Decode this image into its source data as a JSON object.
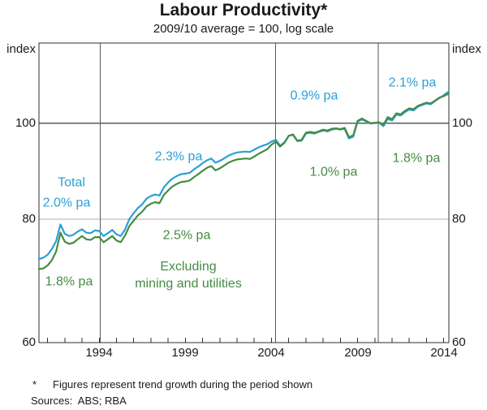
{
  "header": {
    "title": "Labour Productivity*",
    "subtitle": "2009/10 average = 100, log scale"
  },
  "axes": {
    "unit_label": "index",
    "y_ticks": [
      60,
      80,
      100
    ],
    "x_ticks": [
      1994,
      1999,
      2004,
      2009,
      2014
    ]
  },
  "footnotes": {
    "marker": "*",
    "note": "Figures represent trend growth during the period shown",
    "sources": "Sources:  ABS; RBA"
  },
  "colors": {
    "total": "#29A0D8",
    "excluding": "#448C42",
    "grid_light": "#ADADAD",
    "grid_dark": "#5A5A5A",
    "frame": "#2E2E2E",
    "text": "#1A1A1A"
  },
  "chart_data": {
    "type": "line",
    "title": "Labour Productivity*",
    "subtitle": "2009/10 average = 100, log scale",
    "xlabel": "",
    "ylabel": "index",
    "y_scale": "log",
    "x_range": [
      1990.5,
      2014.3
    ],
    "y_range": [
      60,
      120.5
    ],
    "y_gridlines": [
      80,
      100
    ],
    "x_tick_years": [
      1994,
      1999,
      2004,
      2009,
      2014
    ],
    "minor_tick_step": 1,
    "period_separators": [
      1994.05,
      2004.24,
      2010.2
    ],
    "annotations": [
      {
        "id": "total-name",
        "text": "Total",
        "series": "total",
        "year": 1992.4,
        "index": 87.1
      },
      {
        "id": "total-p1",
        "text": "2.0% pa",
        "series": "total",
        "year": 1992.1,
        "index": 83.1
      },
      {
        "id": "excluding-p1",
        "text": "1.8% pa",
        "series": "excluding",
        "year": 1992.25,
        "index": 69.2
      },
      {
        "id": "total-p2",
        "text": "2.3% pa",
        "series": "total",
        "year": 1998.6,
        "index": 92.5
      },
      {
        "id": "excluding-p2",
        "text": "2.5% pa",
        "series": "excluding",
        "year": 1999.1,
        "index": 77.0
      },
      {
        "id": "excluding-name",
        "text": "Excluding\nmining and utilities",
        "series": "excluding",
        "year": 1999.15,
        "index": 70.2
      },
      {
        "id": "total-p3",
        "text": "0.9% pa",
        "series": "total",
        "year": 2006.5,
        "index": 106.6
      },
      {
        "id": "excluding-p3",
        "text": "1.0% pa",
        "series": "excluding",
        "year": 2007.6,
        "index": 89.3
      },
      {
        "id": "total-p4",
        "text": "2.1% pa",
        "series": "total",
        "year": 2012.2,
        "index": 109.9
      },
      {
        "id": "excluding-p4",
        "text": "1.8% pa",
        "series": "excluding",
        "year": 2012.4,
        "index": 92.2
      }
    ],
    "series": [
      {
        "name": "Total",
        "color_key": "total",
        "points": [
          [
            1990.5,
            72.9
          ],
          [
            1990.75,
            73.1
          ],
          [
            1991.0,
            73.6
          ],
          [
            1991.25,
            74.6
          ],
          [
            1991.5,
            76.0
          ],
          [
            1991.75,
            79.0
          ],
          [
            1992.0,
            77.3
          ],
          [
            1992.25,
            76.9
          ],
          [
            1992.5,
            77.1
          ],
          [
            1992.75,
            77.7
          ],
          [
            1993.0,
            78.1
          ],
          [
            1993.25,
            77.5
          ],
          [
            1993.5,
            77.4
          ],
          [
            1993.75,
            77.9
          ],
          [
            1994.0,
            77.8
          ],
          [
            1994.25,
            76.9
          ],
          [
            1994.5,
            77.4
          ],
          [
            1994.75,
            78.0
          ],
          [
            1995.0,
            77.2
          ],
          [
            1995.25,
            76.9
          ],
          [
            1995.5,
            78.1
          ],
          [
            1995.75,
            80.0
          ],
          [
            1996.0,
            81.1
          ],
          [
            1996.25,
            82.1
          ],
          [
            1996.5,
            82.8
          ],
          [
            1996.75,
            83.9
          ],
          [
            1997.0,
            84.4
          ],
          [
            1997.25,
            84.7
          ],
          [
            1997.5,
            84.5
          ],
          [
            1997.75,
            86.1
          ],
          [
            1998.0,
            87.1
          ],
          [
            1998.25,
            87.9
          ],
          [
            1998.5,
            88.4
          ],
          [
            1998.75,
            88.8
          ],
          [
            1999.0,
            88.9
          ],
          [
            1999.25,
            89.1
          ],
          [
            1999.5,
            89.8
          ],
          [
            1999.75,
            90.4
          ],
          [
            2000.0,
            91.1
          ],
          [
            2000.25,
            91.7
          ],
          [
            2000.5,
            92.1
          ],
          [
            2000.75,
            91.2
          ],
          [
            2001.0,
            91.6
          ],
          [
            2001.25,
            92.1
          ],
          [
            2001.5,
            92.7
          ],
          [
            2001.75,
            93.1
          ],
          [
            2002.0,
            93.4
          ],
          [
            2002.25,
            93.5
          ],
          [
            2002.5,
            93.6
          ],
          [
            2002.75,
            93.5
          ],
          [
            2003.0,
            94.0
          ],
          [
            2003.25,
            94.5
          ],
          [
            2003.5,
            94.9
          ],
          [
            2003.75,
            95.2
          ],
          [
            2004.0,
            95.8
          ],
          [
            2004.25,
            96.2
          ],
          [
            2004.5,
            94.9
          ],
          [
            2004.75,
            95.6
          ],
          [
            2005.0,
            97.1
          ],
          [
            2005.25,
            97.3
          ],
          [
            2005.5,
            95.9
          ],
          [
            2005.75,
            96.0
          ],
          [
            2006.0,
            97.6
          ],
          [
            2006.25,
            97.8
          ],
          [
            2006.5,
            97.6
          ],
          [
            2006.75,
            98.0
          ],
          [
            2007.0,
            98.3
          ],
          [
            2007.25,
            98.1
          ],
          [
            2007.5,
            98.5
          ],
          [
            2007.75,
            98.7
          ],
          [
            2008.0,
            98.5
          ],
          [
            2008.25,
            98.7
          ],
          [
            2008.5,
            96.5
          ],
          [
            2008.75,
            96.9
          ],
          [
            2009.0,
            100.3
          ],
          [
            2009.25,
            100.9
          ],
          [
            2009.5,
            100.4
          ],
          [
            2009.75,
            99.9
          ],
          [
            2010.0,
            100.0
          ],
          [
            2010.25,
            100.1
          ],
          [
            2010.5,
            99.3
          ],
          [
            2010.75,
            101.0
          ],
          [
            2011.0,
            100.6
          ],
          [
            2011.25,
            102.0
          ],
          [
            2011.5,
            101.8
          ],
          [
            2011.75,
            102.6
          ],
          [
            2012.0,
            103.2
          ],
          [
            2012.25,
            103.0
          ],
          [
            2012.5,
            103.9
          ],
          [
            2012.75,
            104.3
          ],
          [
            2013.0,
            104.7
          ],
          [
            2013.25,
            104.5
          ],
          [
            2013.5,
            105.3
          ],
          [
            2013.75,
            106.0
          ],
          [
            2014.0,
            106.7
          ],
          [
            2014.25,
            107.5
          ]
        ]
      },
      {
        "name": "Excluding mining and utilities",
        "color_key": "excluding",
        "points": [
          [
            1990.5,
            71.2
          ],
          [
            1990.75,
            71.3
          ],
          [
            1991.0,
            71.8
          ],
          [
            1991.25,
            72.7
          ],
          [
            1991.5,
            74.2
          ],
          [
            1991.75,
            77.5
          ],
          [
            1992.0,
            75.9
          ],
          [
            1992.25,
            75.5
          ],
          [
            1992.5,
            75.7
          ],
          [
            1992.75,
            76.3
          ],
          [
            1993.0,
            76.9
          ],
          [
            1993.25,
            76.3
          ],
          [
            1993.5,
            76.2
          ],
          [
            1993.75,
            76.7
          ],
          [
            1994.0,
            76.7
          ],
          [
            1994.25,
            75.8
          ],
          [
            1994.5,
            76.3
          ],
          [
            1994.75,
            76.9
          ],
          [
            1995.0,
            76.1
          ],
          [
            1995.25,
            75.8
          ],
          [
            1995.5,
            77.0
          ],
          [
            1995.75,
            78.7
          ],
          [
            1996.0,
            79.7
          ],
          [
            1996.25,
            80.7
          ],
          [
            1996.5,
            81.4
          ],
          [
            1996.75,
            82.4
          ],
          [
            1997.0,
            82.9
          ],
          [
            1997.25,
            83.2
          ],
          [
            1997.5,
            83.0
          ],
          [
            1997.75,
            84.6
          ],
          [
            1998.0,
            85.5
          ],
          [
            1998.25,
            86.3
          ],
          [
            1998.5,
            86.8
          ],
          [
            1998.75,
            87.2
          ],
          [
            1999.0,
            87.3
          ],
          [
            1999.25,
            87.5
          ],
          [
            1999.5,
            88.2
          ],
          [
            1999.75,
            88.8
          ],
          [
            2000.0,
            89.5
          ],
          [
            2000.25,
            90.1
          ],
          [
            2000.5,
            90.5
          ],
          [
            2000.75,
            89.6
          ],
          [
            2001.0,
            90.0
          ],
          [
            2001.25,
            90.6
          ],
          [
            2001.5,
            91.2
          ],
          [
            2001.75,
            91.6
          ],
          [
            2002.0,
            91.9
          ],
          [
            2002.25,
            92.0
          ],
          [
            2002.5,
            92.1
          ],
          [
            2002.75,
            92.0
          ],
          [
            2003.0,
            92.5
          ],
          [
            2003.25,
            93.1
          ],
          [
            2003.5,
            93.6
          ],
          [
            2003.75,
            94.1
          ],
          [
            2004.0,
            95.1
          ],
          [
            2004.25,
            95.8
          ],
          [
            2004.5,
            94.7
          ],
          [
            2004.75,
            95.5
          ],
          [
            2005.0,
            97.1
          ],
          [
            2005.25,
            97.4
          ],
          [
            2005.5,
            96.0
          ],
          [
            2005.75,
            96.2
          ],
          [
            2006.0,
            97.8
          ],
          [
            2006.25,
            98.0
          ],
          [
            2006.5,
            97.8
          ],
          [
            2006.75,
            98.1
          ],
          [
            2007.0,
            98.5
          ],
          [
            2007.25,
            98.3
          ],
          [
            2007.5,
            98.7
          ],
          [
            2007.75,
            98.8
          ],
          [
            2008.0,
            98.6
          ],
          [
            2008.25,
            98.9
          ],
          [
            2008.5,
            96.8
          ],
          [
            2008.75,
            97.2
          ],
          [
            2009.0,
            100.5
          ],
          [
            2009.25,
            101.1
          ],
          [
            2009.5,
            100.5
          ],
          [
            2009.75,
            100.0
          ],
          [
            2010.0,
            100.1
          ],
          [
            2010.25,
            100.2
          ],
          [
            2010.5,
            99.6
          ],
          [
            2010.75,
            101.4
          ],
          [
            2011.0,
            100.9
          ],
          [
            2011.25,
            102.3
          ],
          [
            2011.5,
            102.1
          ],
          [
            2011.75,
            102.9
          ],
          [
            2012.0,
            103.5
          ],
          [
            2012.25,
            103.3
          ],
          [
            2012.5,
            104.1
          ],
          [
            2012.75,
            104.5
          ],
          [
            2013.0,
            104.9
          ],
          [
            2013.25,
            104.7
          ],
          [
            2013.5,
            105.4
          ],
          [
            2013.75,
            106.1
          ],
          [
            2014.0,
            106.5
          ],
          [
            2014.25,
            107.0
          ]
        ]
      }
    ]
  }
}
